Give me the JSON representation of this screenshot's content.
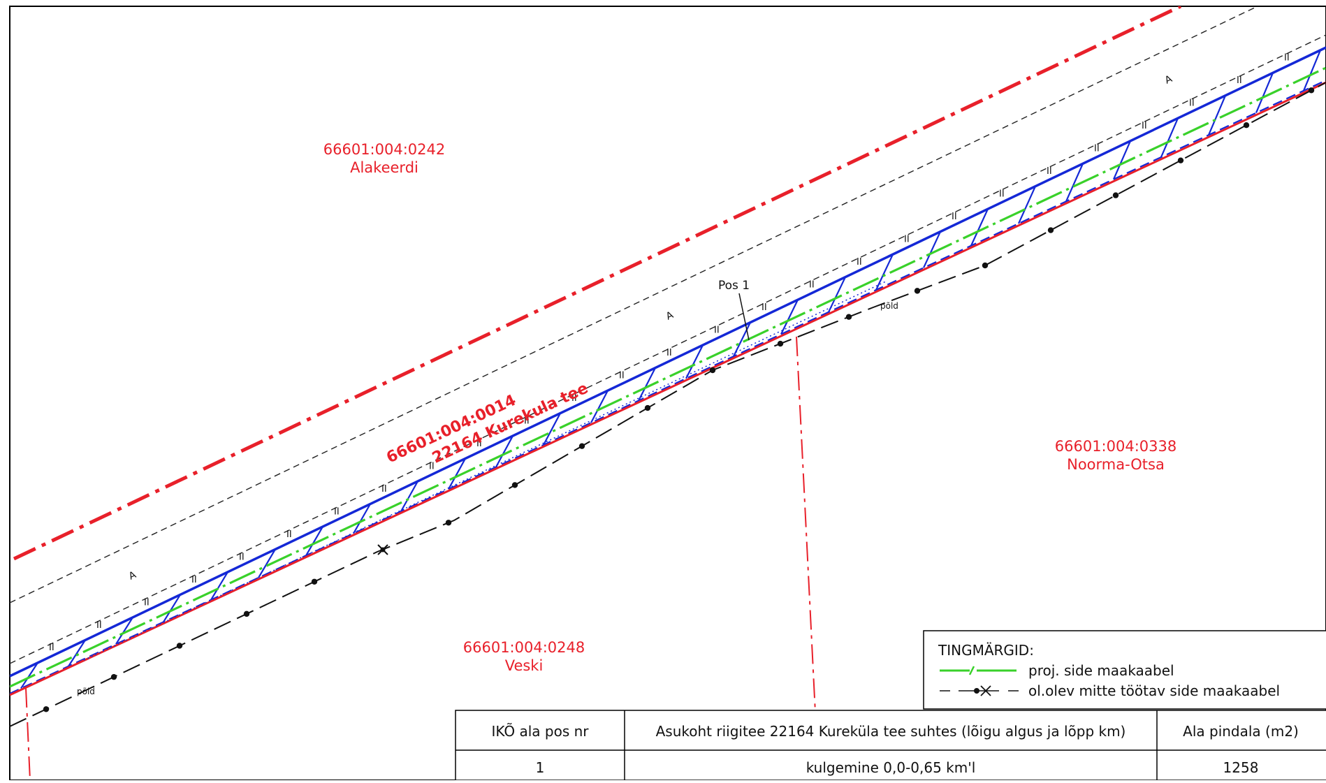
{
  "parcels": [
    {
      "id": "parcel-alakeerdi",
      "code": "66601:004:0242",
      "name": "Alakeerdi"
    },
    {
      "id": "parcel-noorma-otsa",
      "code": "66601:004:0338",
      "name": "Noorma-Otsa"
    },
    {
      "id": "parcel-veski",
      "code": "66601:004:0248",
      "name": "Veski"
    }
  ],
  "road": {
    "code": "66601:004:0014",
    "name": "22164 Kurekula tee"
  },
  "annotations": {
    "pos_label": "Pos 1",
    "field_label": "põld",
    "zone_a": "A",
    "zone_ii": "II"
  },
  "legend": {
    "title": "TINGMÄRGID:",
    "items": [
      {
        "symbol": "proj-cable",
        "label": "proj. side maakaabel"
      },
      {
        "symbol": "existing-cable",
        "label": "ol.olev mitte töötav side maakaabel"
      }
    ]
  },
  "table": {
    "headers": [
      "IKÕ ala pos nr",
      "Asukoht riigitee 22164 Kureküla tee suhtes (lõigu algus ja lõpp km)",
      "Ala pindala (m2)"
    ],
    "rows": [
      [
        "1",
        "kulgemine 0,0-0,65 km'l",
        "1258"
      ]
    ]
  },
  "colors": {
    "boundary_red": "#e8202a",
    "corridor_blue": "#1428d6",
    "cable_green": "#39d12a",
    "line_black": "#111111",
    "dashed_gray": "#222222"
  }
}
